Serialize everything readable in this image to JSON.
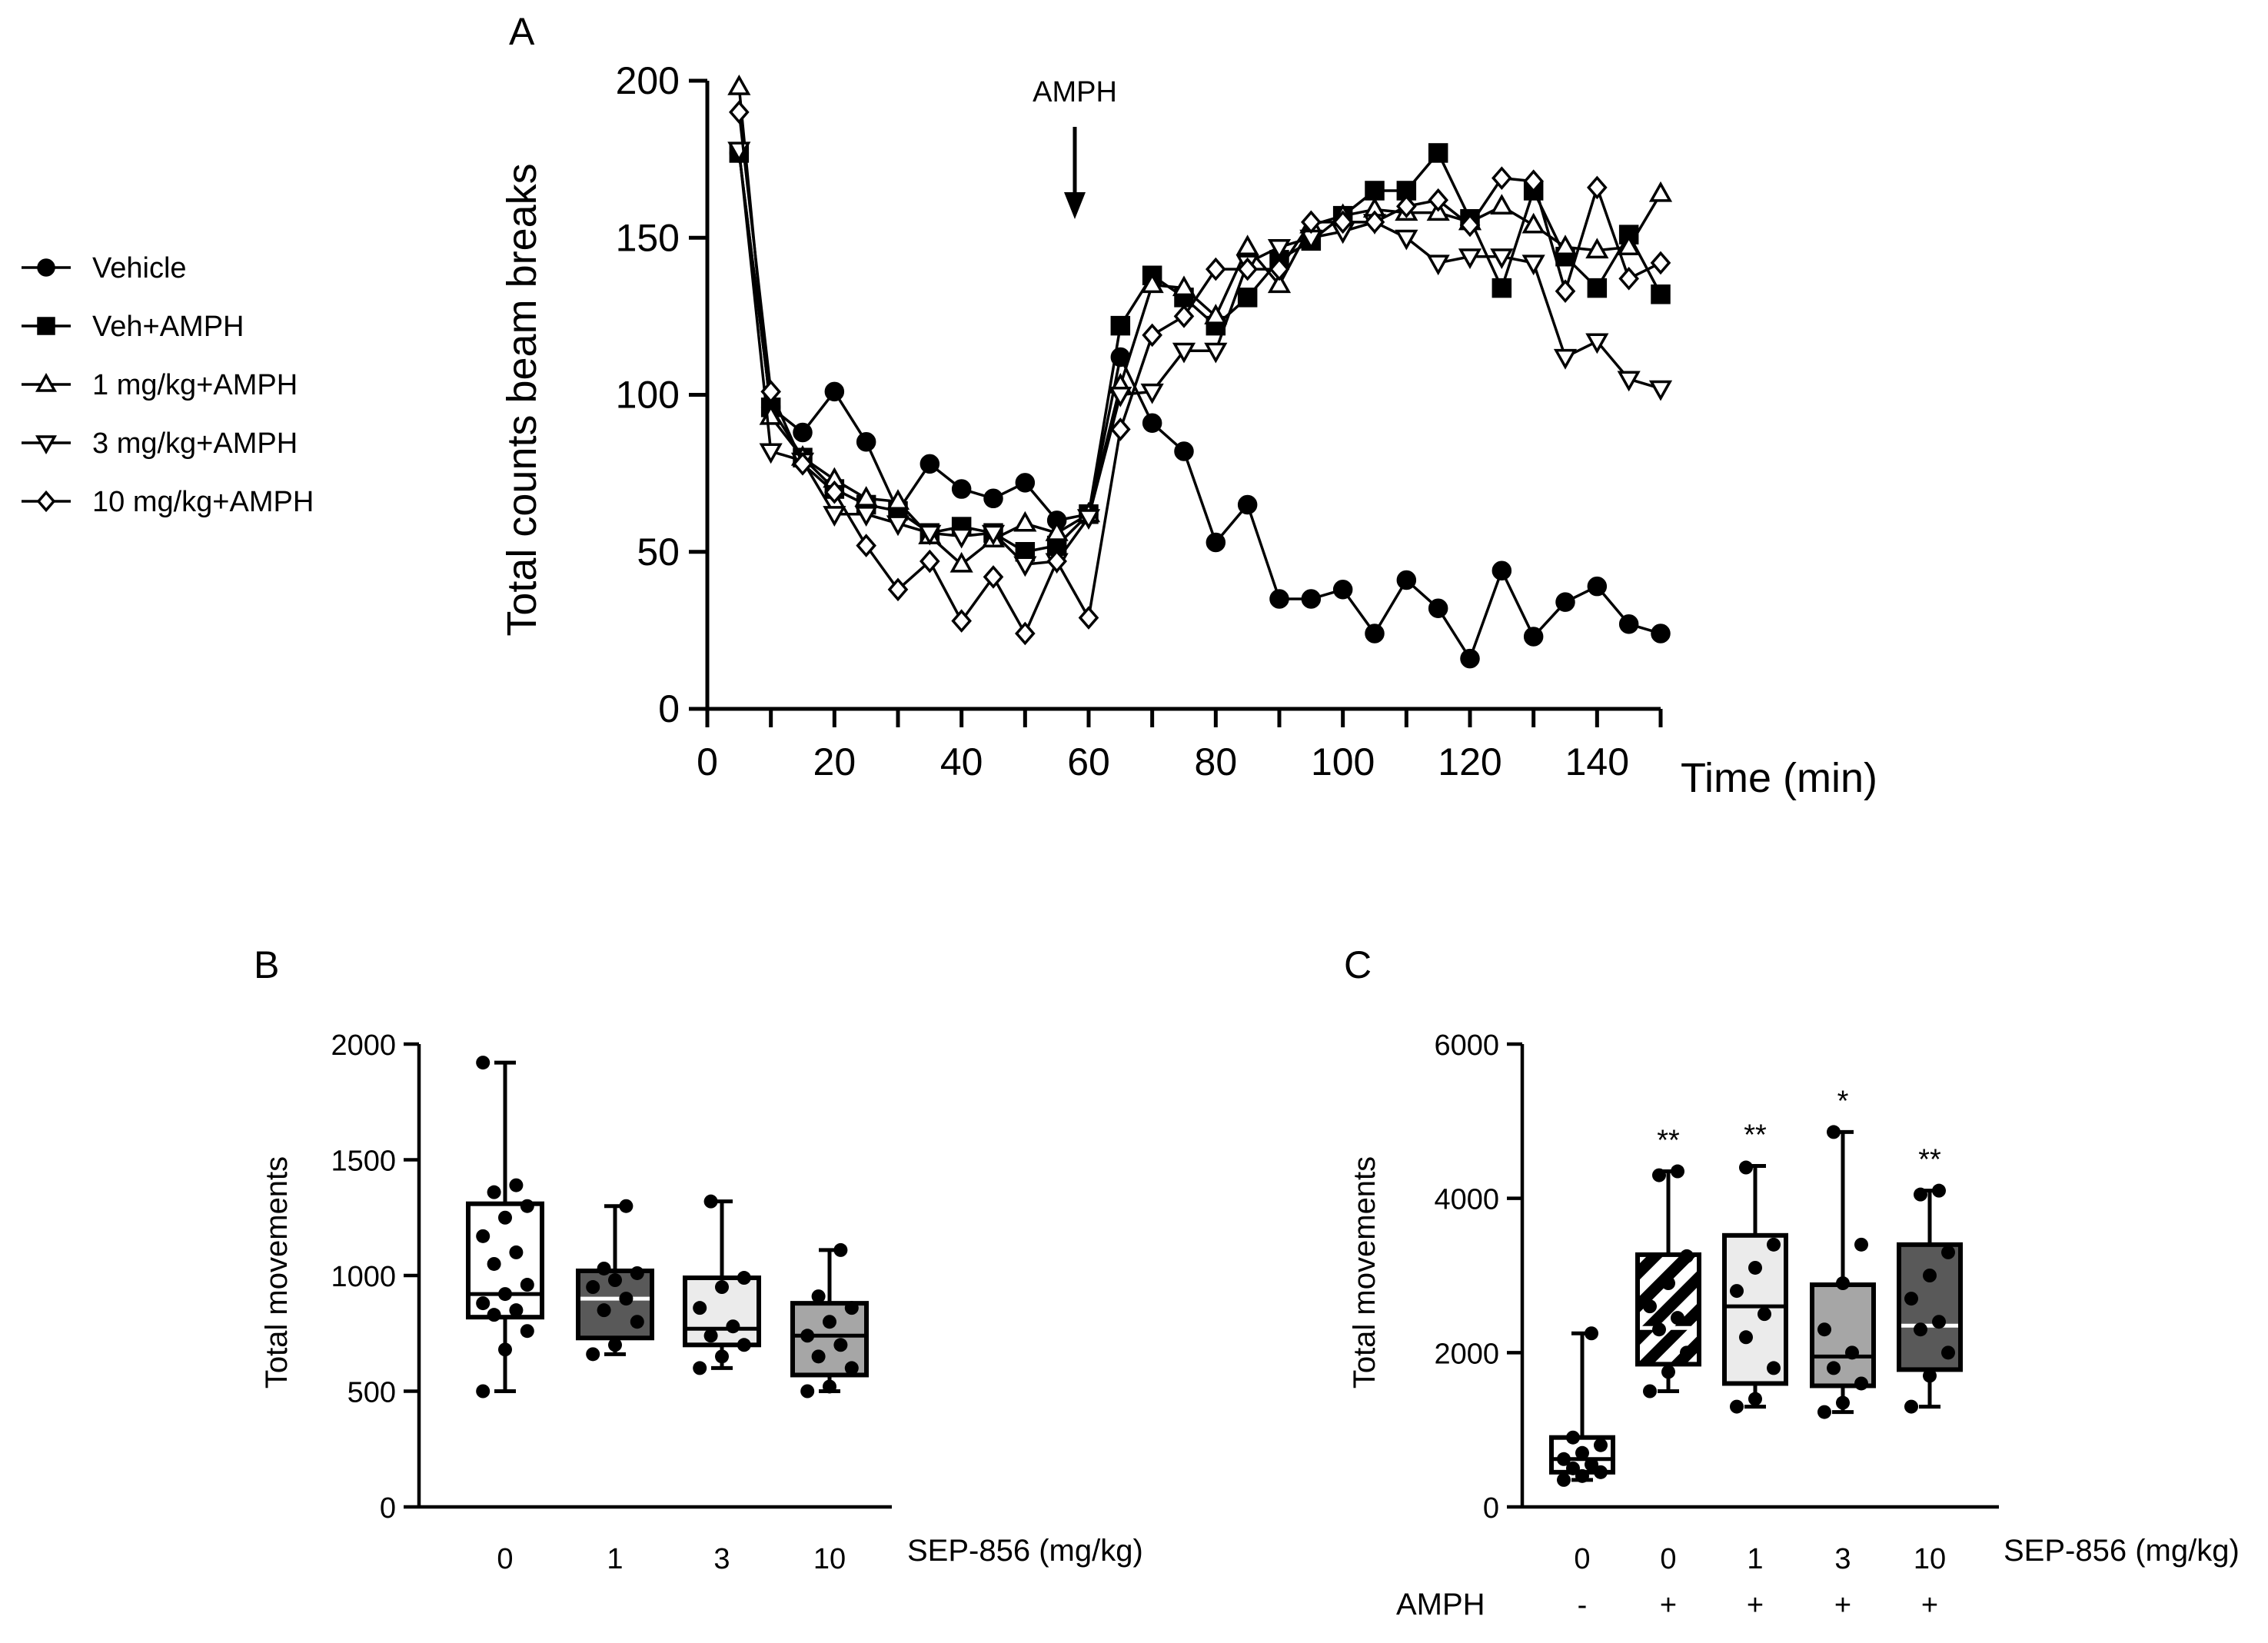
{
  "chart_data": [
    {
      "panel": "A",
      "type": "line",
      "xlabel": "Time (min)",
      "ylabel": "Total counts beam breaks",
      "xlim": [
        0,
        150
      ],
      "ylim": [
        0,
        200
      ],
      "xticks": [
        0,
        20,
        40,
        60,
        80,
        100,
        120,
        140
      ],
      "yticks": [
        0,
        50,
        100,
        150,
        200
      ],
      "annotation": {
        "text": "AMPH",
        "x": 58
      },
      "x": [
        5,
        10,
        15,
        20,
        25,
        30,
        35,
        40,
        45,
        50,
        55,
        60,
        65,
        70,
        75,
        80,
        85,
        90,
        95,
        100,
        105,
        110,
        115,
        120,
        125,
        130,
        135,
        140,
        145,
        150
      ],
      "series": [
        {
          "name": "Vehicle",
          "marker": "circle-filled",
          "values": [
            177,
            96,
            88,
            101,
            85,
            63,
            78,
            70,
            67,
            72,
            60,
            62,
            112,
            91,
            82,
            53,
            65,
            35,
            35,
            38,
            24,
            41,
            32,
            16,
            44,
            23,
            34,
            39,
            27,
            24
          ]
        },
        {
          "name": "Veh+AMPH",
          "marker": "square-filled",
          "values": [
            177,
            96,
            80,
            70,
            65,
            63,
            56,
            58,
            56,
            50,
            52,
            62,
            122,
            138,
            131,
            122,
            131,
            143,
            149,
            157,
            165,
            165,
            177,
            156,
            134,
            165,
            144,
            134,
            151,
            132
          ]
        },
        {
          "name": "1 mg/kg+AMPH",
          "marker": "triangle-up-open",
          "values": [
            198,
            93,
            80,
            73,
            67,
            66,
            55,
            46,
            54,
            59,
            56,
            62,
            103,
            135,
            134,
            125,
            147,
            135,
            154,
            157,
            159,
            158,
            158,
            155,
            160,
            154,
            147,
            146,
            147,
            164
          ]
        },
        {
          "name": "3 mg/kg+AMPH",
          "marker": "triangle-down-open",
          "values": [
            178,
            82,
            79,
            62,
            62,
            59,
            56,
            55,
            56,
            46,
            47,
            61,
            100,
            101,
            114,
            114,
            142,
            147,
            150,
            152,
            155,
            150,
            142,
            144,
            144,
            142,
            112,
            117,
            105,
            102
          ]
        },
        {
          "name": "10 mg/kg+AMPH",
          "marker": "diamond-open",
          "values": [
            190,
            101,
            78,
            69,
            52,
            38,
            47,
            28,
            42,
            24,
            47,
            29,
            89,
            119,
            125,
            140,
            140,
            140,
            155,
            155,
            155,
            160,
            162,
            154,
            169,
            168,
            133,
            166,
            137,
            142
          ]
        }
      ]
    },
    {
      "panel": "B",
      "type": "box",
      "ylabel": "Total movements",
      "xlabel": "SEP-856 (mg/kg)",
      "ylim": [
        0,
        2000
      ],
      "yticks": [
        0,
        500,
        1000,
        1500,
        2000
      ],
      "categories": [
        "0",
        "1",
        "3",
        "10"
      ],
      "boxes": [
        {
          "category": "0",
          "min": 500,
          "q1": 820,
          "median": 920,
          "q3": 1310,
          "max": 1920,
          "fill": "#ffffff",
          "points": [
            500,
            680,
            760,
            830,
            850,
            880,
            920,
            960,
            1050,
            1100,
            1170,
            1250,
            1300,
            1360,
            1390,
            1920
          ]
        },
        {
          "category": "1",
          "min": 660,
          "q1": 730,
          "median": 900,
          "q3": 1020,
          "max": 1300,
          "fill": "#595959",
          "points": [
            660,
            700,
            800,
            850,
            900,
            950,
            980,
            1010,
            1030,
            1300
          ]
        },
        {
          "category": "3",
          "min": 600,
          "q1": 700,
          "median": 770,
          "q3": 990,
          "max": 1320,
          "fill": "#ebebeb",
          "points": [
            600,
            650,
            700,
            740,
            780,
            860,
            950,
            990,
            1320
          ]
        },
        {
          "category": "10",
          "min": 500,
          "q1": 570,
          "median": 740,
          "q3": 880,
          "max": 1110,
          "fill": "#a6a6a6",
          "points": [
            500,
            520,
            600,
            650,
            700,
            740,
            800,
            860,
            910,
            1110
          ]
        }
      ]
    },
    {
      "panel": "C",
      "type": "box",
      "ylabel": "Total movements",
      "xlabel": "SEP-856 (mg/kg)",
      "ylim": [
        0,
        6000
      ],
      "yticks": [
        0,
        2000,
        4000,
        6000
      ],
      "categories": [
        "0",
        "0",
        "1",
        "3",
        "10"
      ],
      "row_label": "AMPH",
      "row_values": [
        "-",
        "+",
        "+",
        "+",
        "+"
      ],
      "boxes": [
        {
          "category": "0",
          "amph": "-",
          "min": 350,
          "q1": 450,
          "median": 620,
          "q3": 900,
          "max": 2250,
          "fill": "#ffffff",
          "significance": "",
          "points": [
            350,
            400,
            450,
            500,
            550,
            620,
            700,
            800,
            900,
            2250
          ]
        },
        {
          "category": "0",
          "amph": "+",
          "min": 1500,
          "q1": 1850,
          "median": 2320,
          "q3": 3270,
          "max": 4350,
          "fill": "hatch",
          "significance": "**",
          "points": [
            1500,
            1750,
            2000,
            2300,
            2450,
            2600,
            2900,
            3250,
            4300,
            4350
          ]
        },
        {
          "category": "1",
          "amph": "+",
          "min": 1300,
          "q1": 1600,
          "median": 2600,
          "q3": 3520,
          "max": 4420,
          "fill": "#ebebeb",
          "significance": "**",
          "points": [
            1300,
            1400,
            1800,
            2200,
            2500,
            2800,
            3100,
            3400,
            4400
          ]
        },
        {
          "category": "3",
          "amph": "+",
          "min": 1230,
          "q1": 1570,
          "median": 1950,
          "q3": 2880,
          "max": 4860,
          "fill": "#a6a6a6",
          "significance": "*",
          "points": [
            1230,
            1350,
            1600,
            1800,
            2000,
            2300,
            2900,
            3400,
            4860
          ]
        },
        {
          "category": "10",
          "amph": "+",
          "min": 1300,
          "q1": 1780,
          "median": 2350,
          "q3": 3400,
          "max": 4100,
          "fill": "#595959",
          "significance": "**",
          "points": [
            1300,
            1700,
            2000,
            2300,
            2400,
            2700,
            3000,
            3300,
            4050,
            4100
          ]
        }
      ]
    }
  ]
}
